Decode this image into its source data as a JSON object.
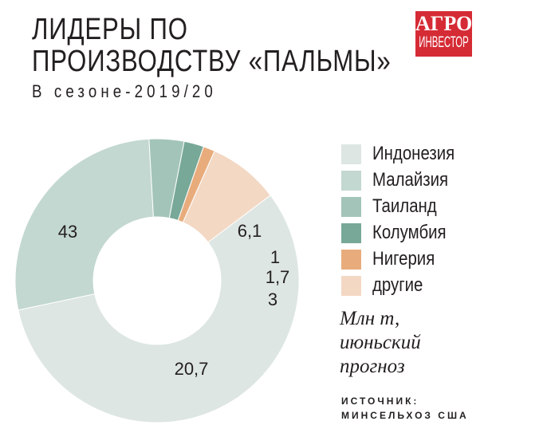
{
  "title_line1": "ЛИДЕРЫ ПО",
  "title_line2": "ПРОИЗВОДСТВУ «ПАЛЬМЫ»",
  "subtitle": "В сезоне-2019/20",
  "logo": {
    "line1": "АГРО",
    "line2": "ИНВЕСТОР",
    "color": "#d52b35"
  },
  "chart_data": {
    "type": "pie",
    "variant": "donut",
    "categories": [
      "Индонезия",
      "Малайзия",
      "Таиланд",
      "Колумбия",
      "Нигерия",
      "другие"
    ],
    "values": [
      43,
      20.7,
      3,
      1.7,
      1,
      6.1
    ],
    "labels": [
      "43",
      "20,7",
      "3",
      "1,7",
      "1",
      "6,1"
    ],
    "colors": [
      "#dde6e2",
      "#c3d8d0",
      "#a3c4b9",
      "#78a898",
      "#e8ac7c",
      "#f3d8c4"
    ],
    "legend": "right"
  },
  "unit_line1": "Млн т,",
  "unit_line2": "июньский",
  "unit_line3": "прогноз",
  "source_line1": "ИСТОЧНИК:",
  "source_line2": "МИНСЕЛЬХОЗ США"
}
